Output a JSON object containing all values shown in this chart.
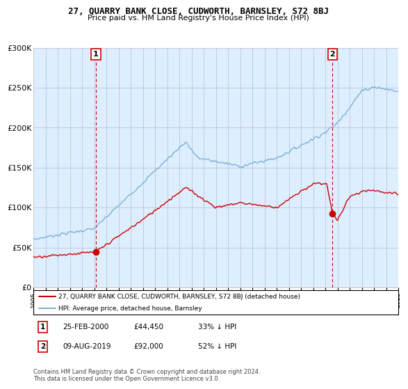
{
  "title": "27, QUARRY BANK CLOSE, CUDWORTH, BARNSLEY, S72 8BJ",
  "subtitle": "Price paid vs. HM Land Registry's House Price Index (HPI)",
  "ylim": [
    0,
    300000
  ],
  "yticks": [
    0,
    50000,
    100000,
    150000,
    200000,
    250000,
    300000
  ],
  "ytick_labels": [
    "£0",
    "£50K",
    "£100K",
    "£150K",
    "£200K",
    "£250K",
    "£300K"
  ],
  "x_start_year": 1995,
  "x_end_year": 2025,
  "sale1_date": 2000.12,
  "sale1_price": 44450,
  "sale1_label": "1",
  "sale1_hpi_pct": "33% ↓ HPI",
  "sale1_date_str": "25-FEB-2000",
  "sale2_date": 2019.58,
  "sale2_price": 92000,
  "sale2_label": "2",
  "sale2_hpi_pct": "52% ↓ HPI",
  "sale2_date_str": "09-AUG-2019",
  "legend_entry1": "27, QUARRY BANK CLOSE, CUDWORTH, BARNSLEY, S72 8BJ (detached house)",
  "legend_entry2": "HPI: Average price, detached house, Barnsley",
  "footer": "Contains HM Land Registry data © Crown copyright and database right 2024.\nThis data is licensed under the Open Government Licence v3.0.",
  "property_color": "#cc0000",
  "hpi_color": "#7ab3d4",
  "vline_color": "#cc0000",
  "background_color": "#ddeeff",
  "grid_color": "#bbbbcc"
}
